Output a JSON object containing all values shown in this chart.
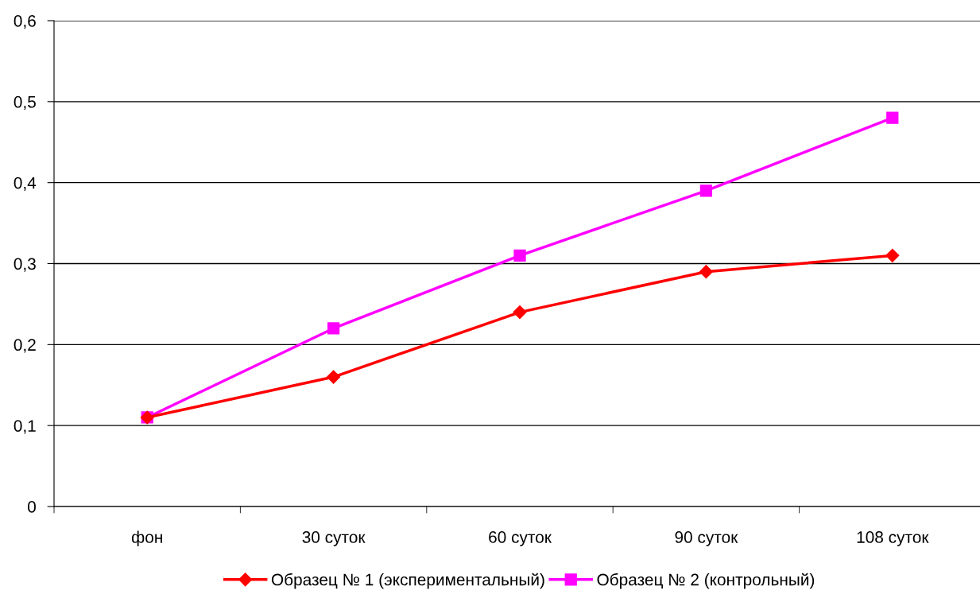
{
  "chart_data": {
    "type": "line",
    "categories": [
      "фон",
      "30 суток",
      "60 суток",
      "90 суток",
      "108 суток"
    ],
    "series": [
      {
        "name": "Образец № 1 (экспериментальный)",
        "color": "#ff0000",
        "marker": "diamond",
        "values": [
          0.11,
          0.16,
          0.24,
          0.29,
          0.31
        ]
      },
      {
        "name": "Образец № 2 (контрольный)",
        "color": "#ff00ff",
        "marker": "square",
        "values": [
          0.11,
          0.22,
          0.31,
          0.39,
          0.48
        ]
      }
    ],
    "ylim": [
      0,
      0.6
    ],
    "yticks": [
      0,
      {
        "value": 0.1,
        "label": "0,1"
      },
      {
        "value": 0.2,
        "label": "0,2"
      },
      {
        "value": 0.3,
        "label": "0,3"
      },
      {
        "value": 0.4,
        "label": "0,4"
      },
      {
        "value": 0.5,
        "label": "0,5"
      },
      {
        "value": 0.6,
        "label": "0,6"
      }
    ],
    "grid": "y",
    "legend": "bottom",
    "line_style": "solid"
  }
}
